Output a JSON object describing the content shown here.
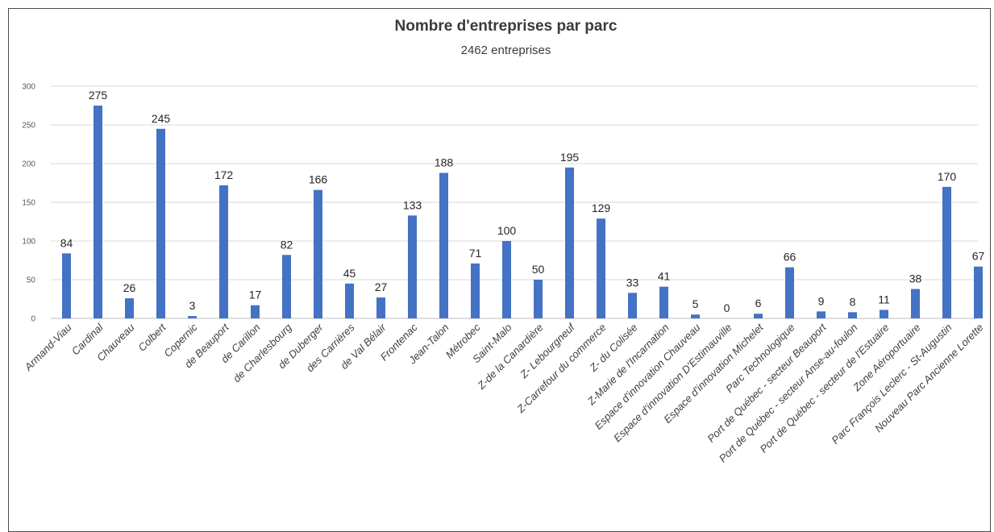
{
  "chart_data": {
    "type": "bar",
    "title": "Nombre d'entreprises par parc",
    "subtitle": "2462 entreprises",
    "xlabel": "",
    "ylabel": "",
    "ylim": [
      0,
      300
    ],
    "yticks": [
      "0",
      "50",
      "100",
      "150",
      "200",
      "250",
      "300"
    ],
    "grid": true,
    "color": "#4472C4",
    "categories": [
      "Armand-Viau",
      "Cardinal",
      "Chauveau",
      "Colbert",
      "Copernic",
      "de Beauport",
      "de Carillon",
      "de Charlesbourg",
      "de Duberger",
      "des Carrières",
      "de Val Bélair",
      "Frontenac",
      "Jean-Talon",
      "Métrobec",
      "Saint-Malo",
      "Z-de la Canardière",
      "Z- Lebourgneuf",
      "Z-Carrefour du commerce",
      "Z- du Colisée",
      "Z-Marie de l'Incarnation",
      "Espace d'innovation Chauveau",
      "Espace d'innovation D'Estimauville",
      "Espace d'innovation Michelet",
      "Parc Technologique",
      "Port de Québec - secteur Beauport",
      "Port de Québec - secteur Anse-au-foulon",
      "Port de Québec - secteur de l'Estuaire",
      "Zone Aéroportuaire",
      "Parc François Leclerc - St-Augustin",
      "Nouveau Parc Ancienne Lorette"
    ],
    "values": [
      84,
      275,
      26,
      245,
      3,
      172,
      17,
      82,
      166,
      45,
      27,
      133,
      188,
      71,
      100,
      50,
      195,
      129,
      33,
      41,
      5,
      0,
      6,
      66,
      9,
      8,
      11,
      38,
      170,
      67
    ]
  }
}
